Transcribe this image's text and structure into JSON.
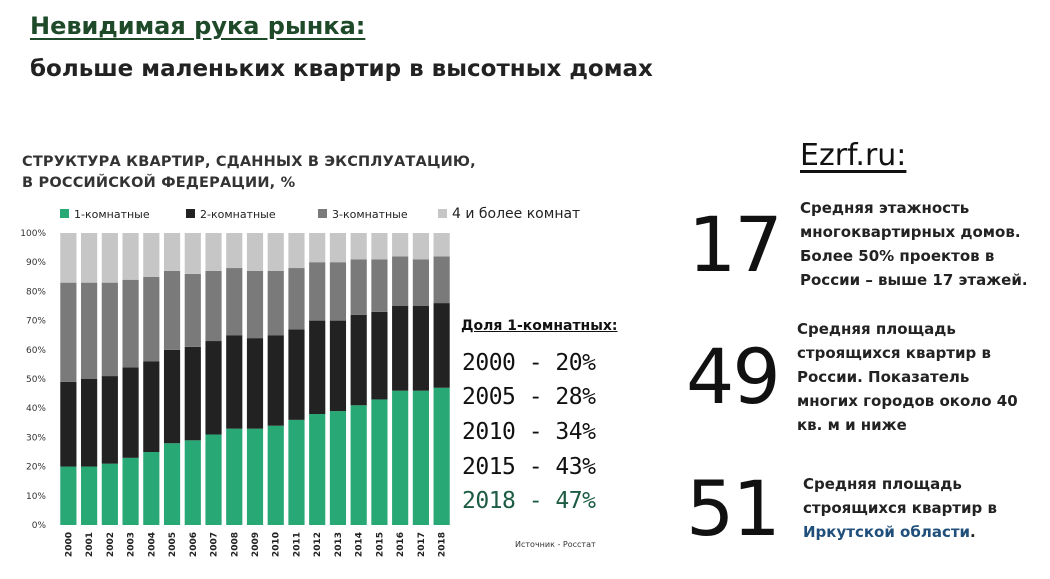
{
  "header": {
    "title": "Невидимая рука рынка:",
    "subtitle": "больше маленьких квартир в высотных домах"
  },
  "chart_title": {
    "line1": "СТРУКТУРА КВАРТИР, СДАННЫХ В ЭКСПЛУАТАЦИЮ,",
    "line2": "В РОССИЙСКОЙ ФЕДЕРАЦИИ, %"
  },
  "chart_data": {
    "type": "bar",
    "stacked": true,
    "categories": [
      "2000",
      "2001",
      "2002",
      "2003",
      "2004",
      "2005",
      "2006",
      "2007",
      "2008",
      "2009",
      "2010",
      "2011",
      "2012",
      "2013",
      "2014",
      "2015",
      "2016",
      "2017",
      "2018"
    ],
    "series": [
      {
        "name": "1-комнатные",
        "color": "#27a874",
        "values": [
          20,
          20,
          21,
          23,
          25,
          28,
          29,
          31,
          33,
          33,
          34,
          36,
          38,
          39,
          41,
          43,
          46,
          46,
          47
        ]
      },
      {
        "name": "2-комнатные",
        "color": "#222222",
        "values": [
          29,
          30,
          30,
          31,
          31,
          32,
          32,
          32,
          32,
          31,
          31,
          31,
          32,
          31,
          31,
          30,
          29,
          29,
          29
        ]
      },
      {
        "name": "3-комнатные",
        "color": "#7a7a7a",
        "values": [
          34,
          33,
          32,
          30,
          29,
          27,
          25,
          24,
          23,
          23,
          22,
          21,
          20,
          20,
          19,
          18,
          17,
          16,
          16
        ]
      },
      {
        "name": "4 и более комнат",
        "color": "#c6c6c6",
        "values": [
          17,
          17,
          17,
          16,
          15,
          13,
          14,
          13,
          12,
          13,
          13,
          12,
          10,
          10,
          9,
          9,
          8,
          9,
          8
        ]
      }
    ],
    "yticks": [
      "0%",
      "10%",
      "20%",
      "30%",
      "40%",
      "50%",
      "60%",
      "70%",
      "80%",
      "90%",
      "100%"
    ],
    "ylim": [
      0,
      100
    ],
    "legend_position": "top"
  },
  "share": {
    "title": "Доля 1-комнатных:",
    "items": [
      "2000 - 20%",
      "2005 - 28%",
      "2010 - 34%",
      "2015 - 43%",
      "2018 - 47%"
    ]
  },
  "source": "Источник - Росстат",
  "site": "Ezrf.ru:",
  "stats": [
    {
      "number": "17",
      "lines": [
        "Средняя этажность",
        "многоквартирных домов.",
        "Более 50% проектов в",
        "России – выше 17 этажей."
      ]
    },
    {
      "number": "49",
      "lines": [
        "Средняя площадь",
        "строящихся квартир в",
        "России. Показатель",
        "многих городов около 40",
        "кв. м и ниже"
      ]
    },
    {
      "number": "51",
      "lines": [
        "Средняя площадь",
        "строящихся квартир в"
      ],
      "accent_line": "Иркутской области",
      "tail": "."
    }
  ]
}
